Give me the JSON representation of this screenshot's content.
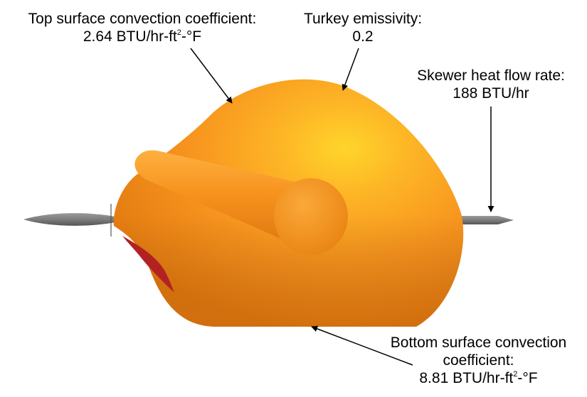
{
  "annotations": {
    "top_convection": {
      "title": "Top surface convection coefficient:",
      "value_prefix": "2.64 BTU/hr-ft",
      "value_sup": "2",
      "value_suffix": "-°F"
    },
    "emissivity": {
      "title": "Turkey emissivity:",
      "value": "0.2"
    },
    "skewer_heat": {
      "title": "Skewer heat flow rate:",
      "value": "188 BTU/hr"
    },
    "bottom_convection": {
      "title_line1": "Bottom surface convection",
      "title_line2": "coefficient:",
      "value_prefix": "8.81 BTU/hr-ft",
      "value_sup": "2",
      "value_suffix": "-°F"
    }
  },
  "colors": {
    "turkey_body": "#F7931E",
    "turkey_highlight": "#FFD02A",
    "turkey_shadow": "#D9700A",
    "underside": "#B22222",
    "skewer": "#7A7A7A",
    "arrow": "#000000"
  }
}
